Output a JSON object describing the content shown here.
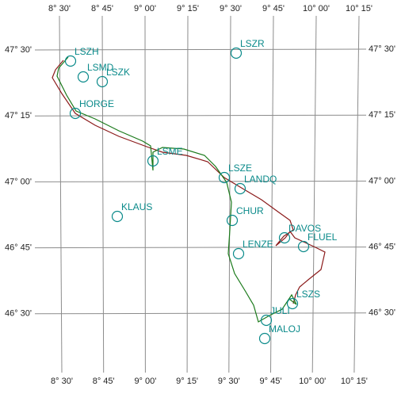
{
  "longitude_labels": [
    "8° 30'",
    "8° 45'",
    "9° 00'",
    "9° 15'",
    "9° 30'",
    "9° 45'",
    "10° 00'",
    "10° 15'"
  ],
  "latitude_labels": [
    "47° 30'",
    "47° 15'",
    "47° 00'",
    "46° 45'",
    "46° 30'"
  ],
  "waypoints": [
    {
      "label": "LSZH"
    },
    {
      "label": "LSMD"
    },
    {
      "label": "LSZK"
    },
    {
      "label": "LSZR"
    },
    {
      "label": "HORGE"
    },
    {
      "label": "LSME"
    },
    {
      "label": "LSZE"
    },
    {
      "label": "LANDQ"
    },
    {
      "label": "KLAUS"
    },
    {
      "label": "CHUR"
    },
    {
      "label": "DAVOS"
    },
    {
      "label": "FLUEL"
    },
    {
      "label": "LENZE"
    },
    {
      "label": "LSZS"
    },
    {
      "label": "JULI"
    },
    {
      "label": "MALOJ"
    }
  ]
}
